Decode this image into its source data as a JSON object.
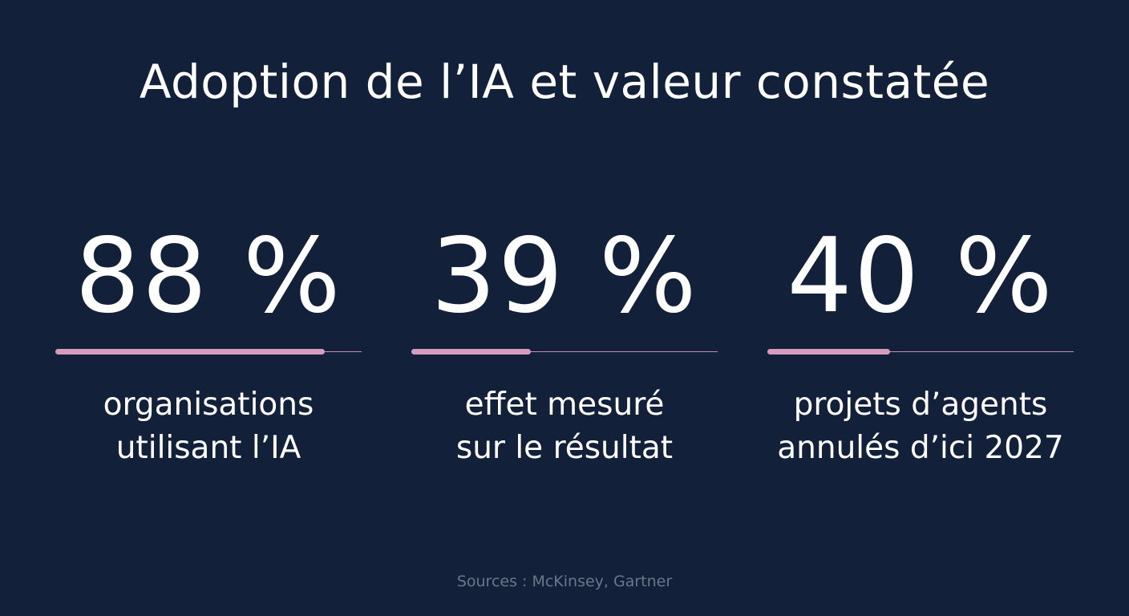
{
  "title": "Adoption de l’IA et valeur constatée",
  "stats": [
    {
      "value": "88 %",
      "fraction": 0.88,
      "label_lines": [
        "organisations",
        "utilisant l’IA"
      ]
    },
    {
      "value": "39 %",
      "fraction": 0.39,
      "label_lines": [
        "effet mesuré",
        "sur le résultat"
      ]
    },
    {
      "value": "40 %",
      "fraction": 0.4,
      "label_lines": [
        "projets d’agents",
        "annulés d’ici 2027"
      ]
    }
  ],
  "sources": "Sources : McKinsey, Gartner",
  "colors": {
    "background": "#132039",
    "text": "#ffffff",
    "accent": "#d79bbd",
    "muted": "#6d7588"
  }
}
